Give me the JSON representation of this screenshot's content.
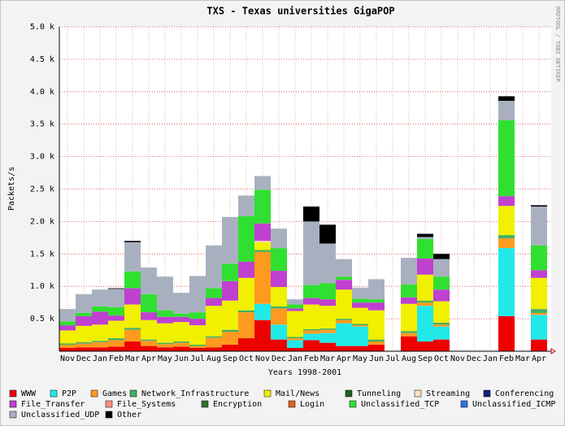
{
  "chart_data": {
    "type": "stacked-bar",
    "title": "TXS - Texas universities GigaPOP",
    "y_label": "Packets/s",
    "x_label": "Years 1998-2001",
    "watermark": "RRDTOOL / TOBI OETIKER",
    "categories": [
      "Nov",
      "Dec",
      "Jan",
      "Feb",
      "Mar",
      "Apr",
      "May",
      "Jun",
      "Jul",
      "Aug",
      "Sep",
      "Oct",
      "Nov",
      "Dec",
      "Jan",
      "Feb",
      "Mar",
      "Apr",
      "May",
      "Jun",
      "Jul",
      "Aug",
      "Sep",
      "Oct",
      "Nov",
      "Dec",
      "Jan",
      "Feb",
      "Mar",
      "Apr"
    ],
    "ylim": [
      0,
      5000
    ],
    "yticks": [
      {
        "value": 500,
        "label": "0.5 k"
      },
      {
        "value": 1000,
        "label": "1.0 k"
      },
      {
        "value": 1500,
        "label": "1.5 k"
      },
      {
        "value": 2000,
        "label": "2.0 k"
      },
      {
        "value": 2500,
        "label": "2.5 k"
      },
      {
        "value": 3000,
        "label": "3.0 k"
      },
      {
        "value": 3500,
        "label": "3.5 k"
      },
      {
        "value": 4000,
        "label": "4.0 k"
      },
      {
        "value": 4500,
        "label": "4.5 k"
      },
      {
        "value": 5000,
        "label": "5.0 k"
      }
    ],
    "grid": true,
    "series": [
      {
        "name": "WWW",
        "color": "#ee0000",
        "values": [
          50,
          60,
          60,
          70,
          150,
          80,
          60,
          70,
          50,
          60,
          100,
          200,
          480,
          180,
          50,
          170,
          130,
          80,
          80,
          100,
          0,
          230,
          150,
          180,
          0,
          0,
          0,
          540,
          0,
          180
        ]
      },
      {
        "name": "P2P",
        "color": "#22e8e8",
        "values": [
          0,
          0,
          0,
          0,
          0,
          0,
          0,
          0,
          0,
          0,
          0,
          0,
          250,
          230,
          120,
          100,
          150,
          350,
          300,
          0,
          0,
          0,
          550,
          200,
          0,
          0,
          0,
          1050,
          0,
          380
        ]
      },
      {
        "name": "Games",
        "color": "#ff9a20",
        "values": [
          50,
          60,
          80,
          100,
          180,
          80,
          50,
          60,
          30,
          150,
          200,
          400,
          800,
          250,
          30,
          50,
          50,
          50,
          20,
          50,
          0,
          50,
          50,
          30,
          0,
          0,
          0,
          150,
          0,
          30
        ]
      },
      {
        "name": "Network_Infrastructure",
        "color": "#40b060",
        "values": [
          20,
          20,
          20,
          30,
          30,
          20,
          20,
          20,
          20,
          20,
          30,
          30,
          30,
          30,
          20,
          20,
          20,
          20,
          20,
          30,
          0,
          30,
          30,
          30,
          0,
          0,
          0,
          50,
          0,
          60
        ]
      },
      {
        "name": "Mail/News",
        "color": "#f0f000",
        "values": [
          200,
          250,
          250,
          270,
          360,
          300,
          300,
          300,
          300,
          470,
          450,
          500,
          120,
          300,
          400,
          380,
          350,
          450,
          250,
          450,
          0,
          420,
          400,
          330,
          0,
          0,
          0,
          450,
          0,
          480
        ]
      },
      {
        "name": "Tunneling",
        "color": "#206020",
        "values": [
          0,
          0,
          0,
          0,
          0,
          0,
          0,
          0,
          0,
          0,
          0,
          0,
          0,
          0,
          0,
          0,
          0,
          0,
          0,
          0,
          0,
          0,
          0,
          0,
          0,
          0,
          0,
          0,
          0,
          0
        ]
      },
      {
        "name": "Streaming",
        "color": "#ffe0c0",
        "values": [
          0,
          0,
          0,
          0,
          0,
          0,
          0,
          0,
          0,
          0,
          0,
          0,
          20,
          0,
          0,
          0,
          0,
          0,
          0,
          0,
          0,
          0,
          0,
          0,
          0,
          0,
          0,
          0,
          0,
          0
        ]
      },
      {
        "name": "Conferencing",
        "color": "#102080",
        "values": [
          0,
          0,
          0,
          0,
          0,
          0,
          0,
          0,
          0,
          0,
          0,
          0,
          0,
          0,
          0,
          0,
          0,
          0,
          0,
          0,
          0,
          0,
          0,
          0,
          0,
          0,
          0,
          0,
          0,
          0
        ]
      },
      {
        "name": "File_Transfer",
        "color": "#c040d0",
        "values": [
          80,
          150,
          200,
          80,
          250,
          120,
          100,
          80,
          100,
          120,
          300,
          250,
          270,
          250,
          40,
          100,
          100,
          150,
          80,
          120,
          0,
          100,
          250,
          180,
          0,
          0,
          0,
          150,
          0,
          120
        ]
      },
      {
        "name": "File_Systems",
        "color": "#ff9080",
        "values": [
          0,
          0,
          0,
          0,
          0,
          0,
          0,
          0,
          0,
          0,
          0,
          0,
          0,
          0,
          0,
          0,
          0,
          0,
          0,
          0,
          0,
          0,
          0,
          0,
          0,
          0,
          0,
          0,
          0,
          0
        ]
      },
      {
        "name": "Encryption",
        "color": "#307030",
        "values": [
          0,
          0,
          0,
          0,
          0,
          0,
          0,
          0,
          0,
          0,
          0,
          0,
          0,
          0,
          0,
          0,
          0,
          0,
          0,
          0,
          0,
          0,
          0,
          0,
          0,
          0,
          0,
          0,
          0,
          0
        ]
      },
      {
        "name": "Login",
        "color": "#e06020",
        "values": [
          0,
          0,
          0,
          0,
          0,
          0,
          0,
          0,
          0,
          0,
          0,
          0,
          0,
          0,
          0,
          0,
          0,
          0,
          0,
          0,
          0,
          0,
          0,
          0,
          0,
          0,
          0,
          0,
          0,
          0
        ]
      },
      {
        "name": "Unclassified_TCP",
        "color": "#30e030",
        "values": [
          60,
          50,
          80,
          130,
          260,
          280,
          100,
          50,
          100,
          150,
          270,
          700,
          520,
          350,
          60,
          200,
          250,
          50,
          60,
          50,
          0,
          200,
          300,
          200,
          0,
          0,
          0,
          1170,
          0,
          380
        ]
      },
      {
        "name": "Unclassified_ICMP",
        "color": "#3070e0",
        "values": [
          0,
          0,
          0,
          0,
          0,
          0,
          0,
          0,
          0,
          0,
          0,
          0,
          0,
          0,
          0,
          0,
          0,
          0,
          0,
          0,
          0,
          0,
          0,
          0,
          0,
          0,
          0,
          0,
          0,
          0
        ]
      },
      {
        "name": "Unclassified_UDP",
        "color": "#a8b0c0",
        "values": [
          190,
          290,
          260,
          280,
          450,
          410,
          520,
          320,
          560,
          660,
          720,
          320,
          210,
          300,
          80,
          980,
          610,
          270,
          170,
          310,
          0,
          410,
          30,
          270,
          0,
          0,
          0,
          300,
          0,
          600
        ]
      },
      {
        "name": "Other",
        "color": "#000000",
        "values": [
          0,
          0,
          0,
          10,
          20,
          0,
          0,
          0,
          0,
          0,
          0,
          0,
          0,
          0,
          0,
          230,
          290,
          0,
          0,
          0,
          0,
          0,
          50,
          80,
          0,
          0,
          0,
          70,
          0,
          20
        ]
      }
    ]
  }
}
